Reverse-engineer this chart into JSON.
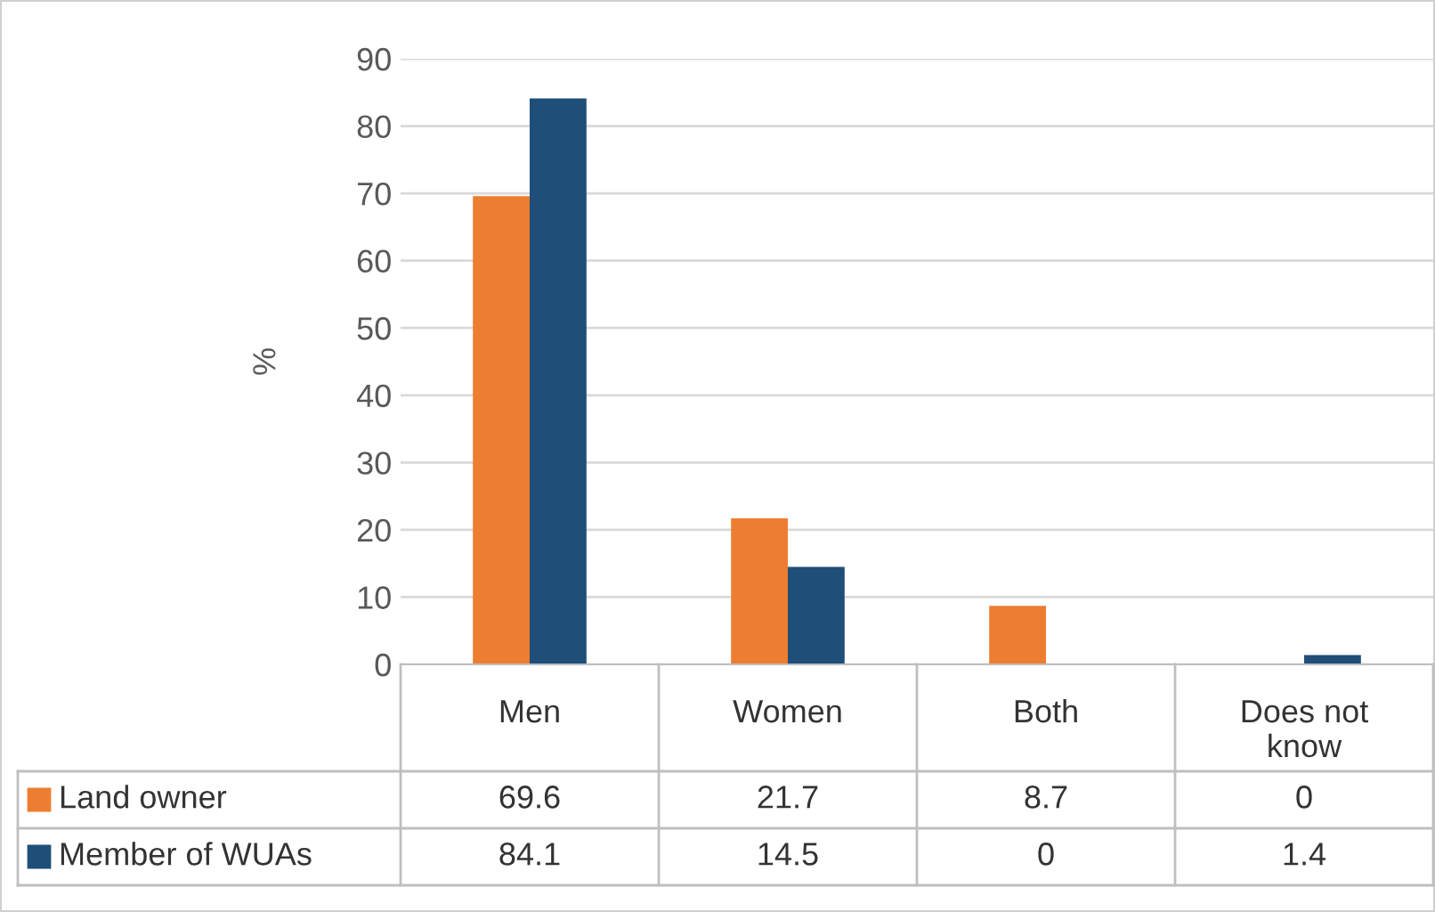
{
  "chart_data": {
    "type": "bar",
    "ylabel": "%",
    "categories": [
      "Men",
      "Women",
      "Both",
      "Does not\nknow"
    ],
    "series": [
      {
        "name": "Land owner",
        "color": "#ed7d31",
        "values": [
          69.6,
          21.7,
          8.7,
          0
        ]
      },
      {
        "name": "Member of WUAs",
        "color": "#1f4e79",
        "values": [
          84.1,
          14.5,
          0,
          1.4
        ]
      }
    ],
    "ylim": [
      0,
      90
    ],
    "yticks": [
      0,
      10,
      20,
      30,
      40,
      50,
      60,
      70,
      80,
      90
    ],
    "grid": "y",
    "data_labels": true,
    "legend": "bottom"
  }
}
